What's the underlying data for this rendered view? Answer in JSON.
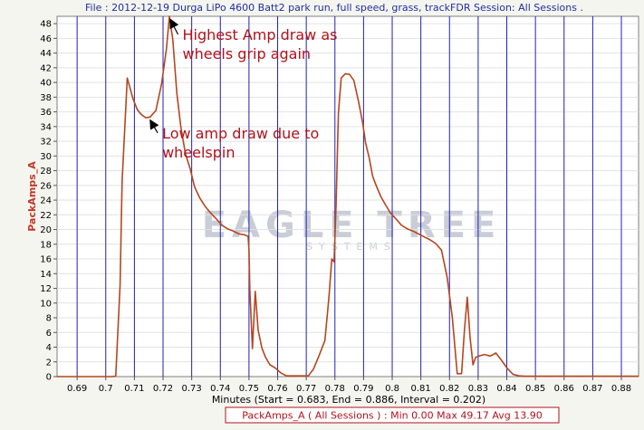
{
  "chart_data": {
    "type": "line",
    "title": "File : 2012-12-19 Durga LiPo 4600 Batt2 park run, full speed, grass, trackFDR   Session: All Sessions .",
    "xlabel": "Minutes (Start = 0.683,  End = 0.886,  Interval = 0.202)",
    "ylabel": "PackAmps_A",
    "xlim": [
      0.683,
      0.886
    ],
    "ylim": [
      0,
      49
    ],
    "x_ticks": [
      "0.69",
      "0.7",
      "0.71",
      "0.72",
      "0.73",
      "0.74",
      "0.75",
      "0.76",
      "0.77",
      "0.78",
      "0.79",
      "0.8",
      "0.81",
      "0.82",
      "0.83",
      "0.84",
      "0.85",
      "0.86",
      "0.87",
      "0.88"
    ],
    "y_ticks": [
      0,
      2,
      4,
      6,
      8,
      10,
      12,
      14,
      16,
      18,
      20,
      22,
      24,
      26,
      28,
      30,
      32,
      34,
      36,
      38,
      40,
      42,
      44,
      46,
      48
    ],
    "grid": true,
    "series": [
      {
        "name": "PackAmps_A ( All Sessions )",
        "color": "#b5461f",
        "x": [
          0.683,
          0.7023,
          0.7035,
          0.705,
          0.7057,
          0.7075,
          0.7095,
          0.711,
          0.7125,
          0.714,
          0.7155,
          0.7175,
          0.7195,
          0.7212,
          0.7222,
          0.7234,
          0.7248,
          0.7262,
          0.7278,
          0.7295,
          0.731,
          0.7328,
          0.7346,
          0.7365,
          0.7385,
          0.7405,
          0.7425,
          0.7445,
          0.7465,
          0.7482,
          0.7497,
          0.75,
          0.7503,
          0.7512,
          0.7522,
          0.7532,
          0.7545,
          0.7557,
          0.7573,
          0.7591,
          0.7611,
          0.7631,
          0.7651,
          0.7671,
          0.7691,
          0.7707,
          0.7725,
          0.7745,
          0.7765,
          0.7779,
          0.7789,
          0.7797,
          0.7804,
          0.7812,
          0.7822,
          0.7836,
          0.7851,
          0.7866,
          0.7882,
          0.7897,
          0.7907,
          0.792,
          0.7932,
          0.7946,
          0.796,
          0.7976,
          0.7993,
          0.8012,
          0.8032,
          0.8052,
          0.8072,
          0.8092,
          0.8112,
          0.8132,
          0.8152,
          0.8172,
          0.8192,
          0.821,
          0.8227,
          0.8242,
          0.8252,
          0.8262,
          0.8272,
          0.8282,
          0.8291,
          0.8302,
          0.8322,
          0.8342,
          0.8362,
          0.8382,
          0.8402,
          0.8422,
          0.8443,
          0.8462,
          0.8482,
          0.8502,
          0.8522,
          0.886
        ],
        "values": [
          0,
          0,
          0.1,
          12.5,
          26.5,
          40.6,
          37.8,
          36.3,
          35.6,
          35.2,
          35.3,
          36.2,
          39.8,
          44.6,
          49.0,
          45.8,
          38.6,
          34.0,
          30.3,
          28.2,
          25.8,
          24.3,
          23.2,
          22.3,
          21.5,
          20.6,
          20.1,
          19.8,
          19.4,
          19.3,
          19.1,
          17.2,
          11.9,
          3.8,
          11.6,
          6.3,
          3.9,
          2.7,
          1.6,
          1.2,
          0.5,
          0.1,
          0.1,
          0.1,
          0.1,
          0.1,
          1.0,
          2.9,
          4.9,
          10.7,
          16.0,
          15.6,
          23.2,
          35.8,
          40.6,
          41.2,
          41.1,
          40.3,
          37.5,
          34.5,
          31.8,
          29.7,
          27.2,
          25.8,
          24.5,
          23.4,
          22.3,
          21.5,
          20.6,
          20.1,
          19.8,
          19.4,
          19.0,
          18.6,
          18.1,
          17.2,
          13.5,
          8.0,
          0.4,
          0.4,
          6.2,
          10.8,
          5.3,
          1.6,
          2.6,
          2.8,
          3.0,
          2.8,
          3.2,
          2.2,
          1.1,
          0.3,
          0.1,
          0.05,
          0.05,
          0.05,
          0.05,
          0.05
        ]
      }
    ],
    "annotations": [
      {
        "lines": [
          "Highest Amp draw as",
          "wheels grip again"
        ],
        "x": 0.7268,
        "y": 45.8,
        "arrow_to": [
          0.7225,
          48.6
        ]
      },
      {
        "lines": [
          "Low amp draw due to",
          "wheelspin"
        ],
        "x": 0.7197,
        "y": 32.4,
        "arrow_to": [
          0.7155,
          34.9
        ]
      }
    ],
    "legend": {
      "text": "PackAmps_A ( All Sessions ) : Min 0.00    Max 49.17    Avg 13.90",
      "placement": "bottom-center"
    },
    "watermark": {
      "text": "EAGLE TREE",
      "subtext": "SYSTEMS"
    },
    "colors": {
      "grid_vertical": "#2020b8",
      "grid_horizontal": "#e2e2e2",
      "plot_bg": "#ffffff",
      "frame_bg": "#f5f5f0",
      "line": "#b5461f",
      "annotation": "#b0121b",
      "title": "#1f2f9f"
    }
  }
}
